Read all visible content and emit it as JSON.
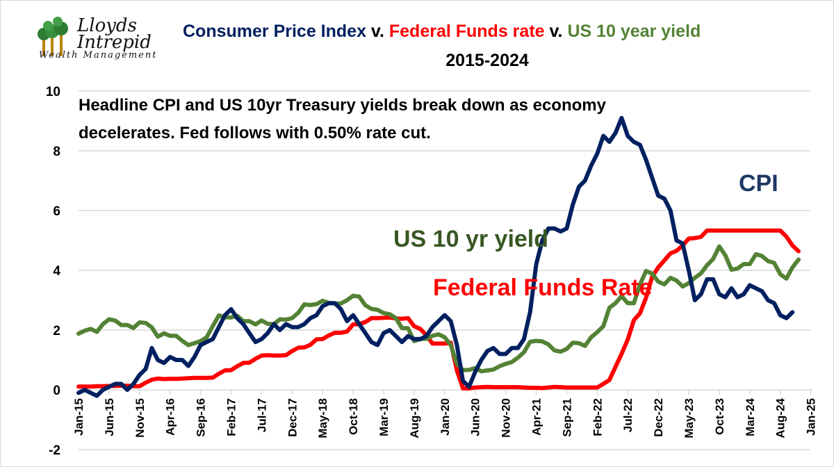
{
  "logo": {
    "line1": "Lloyds",
    "line2": "Intrepid",
    "line3": "Wealth Management"
  },
  "title": {
    "part1": "Consumer Price Index",
    "sep1": " v. ",
    "part2": "Federal Funds rate",
    "sep2": " v. ",
    "part3": "US 10 year yield",
    "line2": "2015-2024"
  },
  "annotation": {
    "line1": "Headline CPI and US 10yr Treasury yields break down as economy",
    "line2": "decelerates. Fed follows with 0.50% rate cut."
  },
  "colors": {
    "cpi": "#002060",
    "fed": "#FF0000",
    "yield": "#548235",
    "grid": "#d9d9d9"
  },
  "chart_data": {
    "type": "line",
    "title": "Consumer Price Index v. Federal Funds rate v. US 10 year yield 2015-2024",
    "x_start": "Jan-15",
    "x_frequency": "monthly",
    "xlim": [
      "Jan-15",
      "Jan-25"
    ],
    "ylim": [
      -2,
      10
    ],
    "y_ticks": [
      "-2",
      "0",
      "2",
      "4",
      "6",
      "8",
      "10"
    ],
    "x_tick_labels": [
      "Jan-15",
      "Jun-15",
      "Nov-15",
      "Apr-16",
      "Sep-16",
      "Feb-17",
      "Jul-17",
      "Dec-17",
      "May-18",
      "Oct-18",
      "Mar-19",
      "Aug-19",
      "Jan-20",
      "Jun-20",
      "Nov-20",
      "Apr-21",
      "Sep-21",
      "Feb-22",
      "Jul-22",
      "Dec-22",
      "May-23",
      "Oct-23",
      "Mar-24",
      "Aug-24",
      "Jan-25"
    ],
    "grid": true,
    "series": [
      {
        "name": "CPI",
        "color": "#002060",
        "values": [
          -0.1,
          0.0,
          -0.1,
          -0.2,
          0.0,
          0.1,
          0.2,
          0.2,
          0.0,
          0.2,
          0.5,
          0.7,
          1.4,
          1.0,
          0.9,
          1.1,
          1.0,
          1.0,
          0.8,
          1.1,
          1.5,
          1.6,
          1.7,
          2.1,
          2.5,
          2.7,
          2.4,
          2.2,
          1.9,
          1.6,
          1.7,
          1.9,
          2.2,
          2.0,
          2.2,
          2.1,
          2.1,
          2.2,
          2.4,
          2.5,
          2.8,
          2.9,
          2.9,
          2.7,
          2.3,
          2.5,
          2.2,
          1.9,
          1.6,
          1.5,
          1.9,
          2.0,
          1.8,
          1.6,
          1.8,
          1.7,
          1.7,
          1.8,
          2.1,
          2.3,
          2.5,
          2.3,
          1.5,
          0.3,
          0.1,
          0.6,
          1.0,
          1.3,
          1.4,
          1.2,
          1.2,
          1.4,
          1.4,
          1.7,
          2.6,
          4.2,
          5.0,
          5.4,
          5.4,
          5.3,
          5.4,
          6.2,
          6.8,
          7.0,
          7.5,
          7.9,
          8.5,
          8.3,
          8.6,
          9.1,
          8.5,
          8.3,
          8.2,
          7.7,
          7.1,
          6.5,
          6.4,
          6.0,
          5.0,
          4.9,
          4.0,
          3.0,
          3.2,
          3.7,
          3.7,
          3.2,
          3.1,
          3.4,
          3.1,
          3.2,
          3.5,
          3.4,
          3.3,
          3.0,
          2.9,
          2.5,
          2.4,
          2.6
        ]
      },
      {
        "name": "Federal Funds Rate",
        "color": "#FF0000",
        "values": [
          0.11,
          0.11,
          0.11,
          0.12,
          0.12,
          0.13,
          0.13,
          0.14,
          0.14,
          0.12,
          0.12,
          0.24,
          0.34,
          0.38,
          0.36,
          0.37,
          0.37,
          0.38,
          0.39,
          0.4,
          0.4,
          0.4,
          0.41,
          0.54,
          0.65,
          0.66,
          0.79,
          0.9,
          0.91,
          1.04,
          1.15,
          1.16,
          1.15,
          1.15,
          1.16,
          1.3,
          1.41,
          1.42,
          1.51,
          1.69,
          1.7,
          1.82,
          1.91,
          1.91,
          1.95,
          2.19,
          2.2,
          2.27,
          2.4,
          2.4,
          2.41,
          2.42,
          2.39,
          2.38,
          2.4,
          2.13,
          2.04,
          1.83,
          1.55,
          1.55,
          1.55,
          1.58,
          0.65,
          0.05,
          0.05,
          0.08,
          0.09,
          0.1,
          0.09,
          0.09,
          0.09,
          0.09,
          0.09,
          0.08,
          0.07,
          0.07,
          0.06,
          0.08,
          0.1,
          0.09,
          0.08,
          0.08,
          0.08,
          0.08,
          0.08,
          0.08,
          0.2,
          0.33,
          0.77,
          1.21,
          1.68,
          2.33,
          2.56,
          3.08,
          3.78,
          4.1,
          4.33,
          4.57,
          4.65,
          4.83,
          5.06,
          5.08,
          5.12,
          5.33,
          5.33,
          5.33,
          5.33,
          5.33,
          5.33,
          5.33,
          5.33,
          5.33,
          5.33,
          5.33,
          5.33,
          5.33,
          5.13,
          4.83,
          4.64
        ]
      },
      {
        "name": "US 10 yr yield",
        "color": "#548235",
        "values": [
          1.88,
          1.98,
          2.04,
          1.94,
          2.2,
          2.36,
          2.32,
          2.17,
          2.17,
          2.07,
          2.26,
          2.24,
          2.09,
          1.78,
          1.89,
          1.81,
          1.81,
          1.64,
          1.5,
          1.56,
          1.63,
          1.76,
          2.14,
          2.49,
          2.43,
          2.42,
          2.48,
          2.3,
          2.3,
          2.19,
          2.32,
          2.21,
          2.2,
          2.36,
          2.35,
          2.4,
          2.58,
          2.86,
          2.84,
          2.87,
          2.98,
          2.91,
          2.89,
          2.89,
          3.0,
          3.15,
          3.12,
          2.83,
          2.71,
          2.68,
          2.57,
          2.53,
          2.4,
          2.07,
          2.06,
          1.63,
          1.7,
          1.71,
          1.81,
          1.86,
          1.76,
          1.5,
          0.87,
          0.66,
          0.67,
          0.73,
          0.62,
          0.65,
          0.68,
          0.79,
          0.87,
          0.93,
          1.08,
          1.26,
          1.61,
          1.64,
          1.62,
          1.52,
          1.32,
          1.28,
          1.37,
          1.58,
          1.56,
          1.47,
          1.76,
          1.93,
          2.13,
          2.75,
          2.9,
          3.14,
          2.9,
          2.9,
          3.52,
          3.98,
          3.89,
          3.62,
          3.53,
          3.75,
          3.66,
          3.46,
          3.57,
          3.75,
          3.9,
          4.17,
          4.38,
          4.8,
          4.5,
          4.02,
          4.06,
          4.21,
          4.21,
          4.54,
          4.48,
          4.31,
          4.25,
          3.87,
          3.72,
          4.1,
          4.36
        ]
      }
    ]
  }
}
